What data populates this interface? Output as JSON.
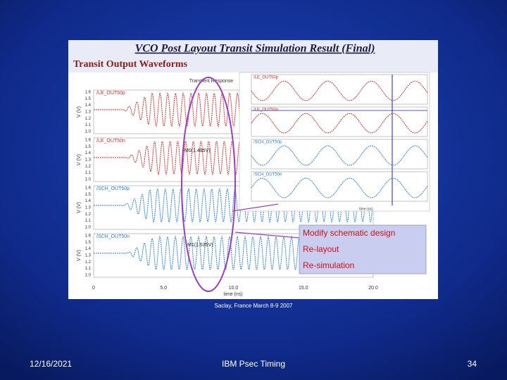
{
  "slide": {
    "title": "VCO Post Layout Transit Simulation Result (Final)",
    "subtitle": "Transit Output Waveforms",
    "caption": "Saclay, France March 8-9 2007"
  },
  "main_plot": {
    "title": "Transient Response",
    "y_label": "V (V)",
    "x_label": "time (ns)",
    "x_ticks": [
      "0",
      "5.0",
      "10.0",
      "15.0",
      "20.0"
    ],
    "y_ticks": [
      "1.6",
      "1.5",
      "1.4",
      "1.3",
      "1.2",
      "1.1",
      "1.0"
    ],
    "signals": [
      "/LE_OUT50p",
      "/LE_OUT50n",
      "/SCH_OUT50p",
      "/SCH_OUT50n"
    ],
    "markers": [
      "M0(1.495V)",
      "M1(1.535V)"
    ]
  },
  "zoom_plot": {
    "signals": [
      "/LE_OUT50p",
      "/LE_OUT50n",
      "/SCH_OUT50p",
      "/SCH_OUT50n"
    ],
    "x_label": "time (ns)"
  },
  "note": {
    "lines": [
      "Modify schematic design",
      "Re-layout",
      "Re-simulation"
    ]
  },
  "footer": {
    "date": "12/16/2021",
    "center": "IBM Psec Timing",
    "page": "34"
  }
}
